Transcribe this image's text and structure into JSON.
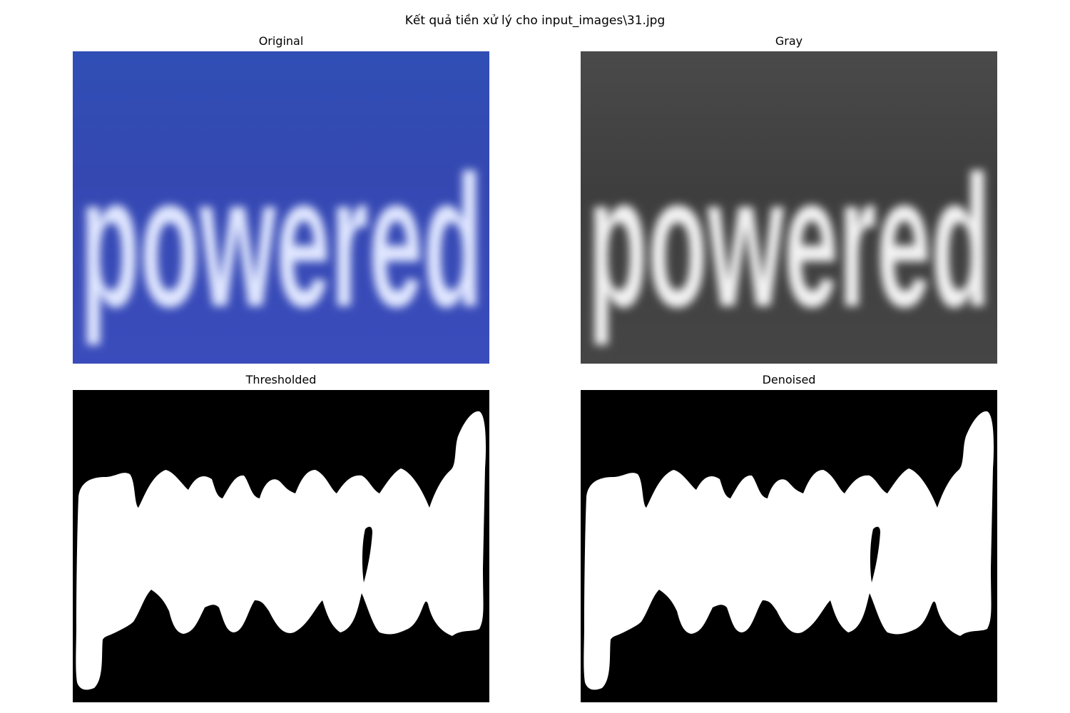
{
  "figure": {
    "suptitle": "Kết quả tiền xử lý cho input_images\\31.jpg"
  },
  "panels": [
    {
      "title": "Original"
    },
    {
      "title": "Gray"
    },
    {
      "title": "Thresholded"
    },
    {
      "title": "Denoised"
    }
  ],
  "image_content": {
    "word": "powered"
  },
  "colors": {
    "original_bg": "#3548b2",
    "original_text": "#dfe6ff",
    "gray_bg": "#424242",
    "gray_text": "#f2f2f2",
    "mask_bg": "#000000",
    "mask_fg": "#ffffff"
  }
}
